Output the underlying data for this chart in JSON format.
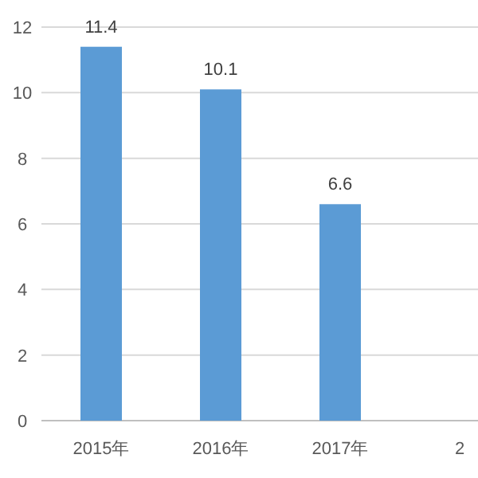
{
  "chart_data": {
    "type": "bar",
    "categories": [
      "2015年",
      "2016年",
      "2017年",
      "2"
    ],
    "values": [
      11.4,
      10.1,
      6.6,
      null
    ],
    "color": "#5b9bd5",
    "ylim": [
      0,
      12
    ],
    "yticks": [
      0,
      2,
      4,
      6,
      8,
      10,
      12
    ],
    "grid": "y",
    "data_labels": true
  }
}
